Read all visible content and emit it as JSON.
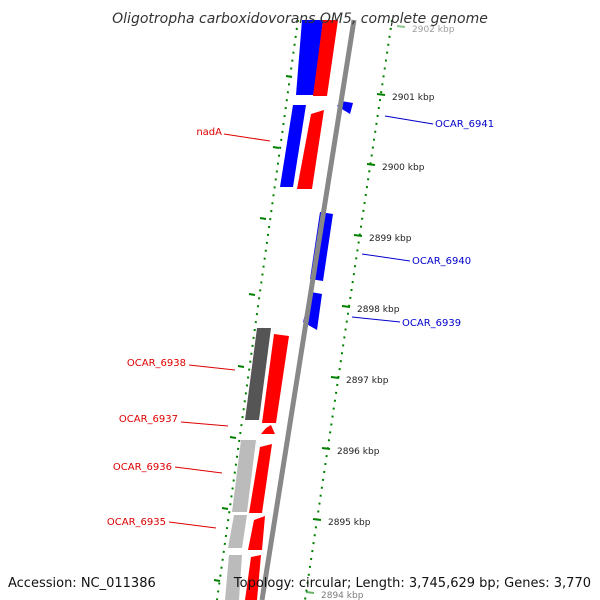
{
  "title": "Oligotropha carboxidovorans OM5, complete genome",
  "footer": {
    "accession": "Accession: NC_011386",
    "topology": "Topology: circular; Length: 3,745,629 bp; Genes: 3,770"
  },
  "colors": {
    "forward": "#ff0000",
    "reverse": "#0000ff",
    "gc_dark": "#555555",
    "gc_light": "#bbbbbb",
    "backbone": "#888888",
    "ticks": "#008000",
    "reverse_label": "#0000cc",
    "forward_label": "#dd0000"
  },
  "ticks": [
    {
      "label": "2902 kbp"
    },
    {
      "label": "2901 kbp"
    },
    {
      "label": "2900 kbp"
    },
    {
      "label": "2899 kbp"
    },
    {
      "label": "2898 kbp"
    },
    {
      "label": "2897 kbp"
    },
    {
      "label": "2896 kbp"
    },
    {
      "label": "2895 kbp"
    },
    {
      "label": "2894 kbp"
    }
  ],
  "gene_labels": {
    "right": [
      "OCAR_6941",
      "OCAR_6940",
      "OCAR_6939"
    ],
    "left": [
      "nadA",
      "OCAR_6938",
      "OCAR_6937",
      "OCAR_6936",
      "OCAR_6935"
    ]
  }
}
